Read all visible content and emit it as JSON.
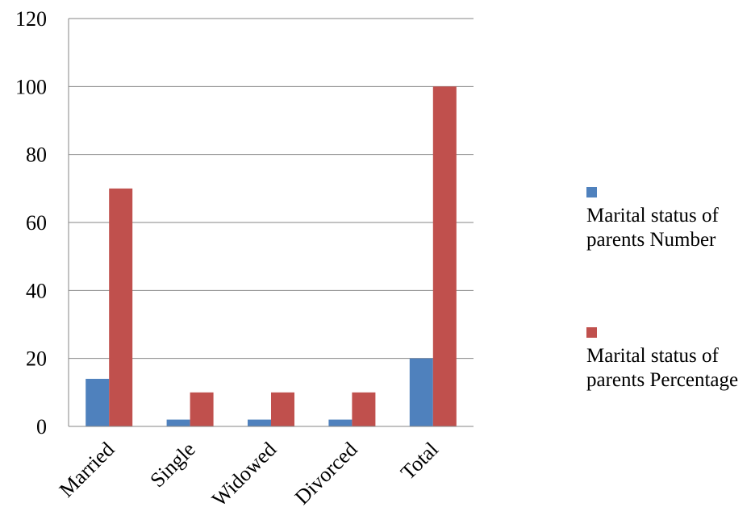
{
  "chart_data": {
    "type": "bar",
    "categories": [
      "Married",
      "Single",
      "Widowed",
      "Divorced",
      "Total"
    ],
    "series": [
      {
        "name": "Marital status of parents Number",
        "color": "#4f81bd",
        "values": [
          14,
          2,
          2,
          2,
          20
        ]
      },
      {
        "name": "Marital status of parents Percentage",
        "color": "#c0504d",
        "values": [
          70,
          10,
          10,
          10,
          100
        ]
      }
    ],
    "title": "",
    "xlabel": "",
    "ylabel": "",
    "ylim": [
      0,
      120
    ],
    "yticks": [
      "0",
      "20",
      "40",
      "60",
      "80",
      "100",
      "120"
    ],
    "grid": true,
    "legend_position": "right"
  }
}
